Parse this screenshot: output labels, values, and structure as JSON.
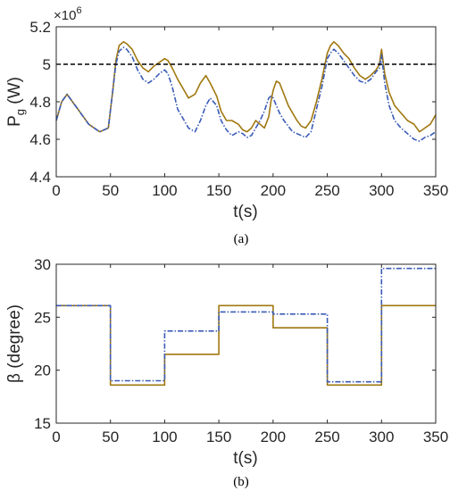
{
  "chart_data": [
    {
      "type": "line",
      "panel_label": "(a)",
      "xlabel": "t(s)",
      "ylabel": "P",
      "ylabel_sub": "g",
      "ylabel_unit": "(W)",
      "y_multiplier": "×10",
      "y_multiplier_exp": "6",
      "xlim": [
        0,
        350
      ],
      "ylim": [
        4.4,
        5.2
      ],
      "xticks": [
        "0",
        "50",
        "100",
        "150",
        "200",
        "250",
        "300",
        "350"
      ],
      "yticks": [
        "4.4",
        "4.6",
        "4.8",
        "5",
        "5.2"
      ],
      "reference_line": {
        "y": 5.0,
        "style": "dashed",
        "color": "#000000"
      },
      "grid": false,
      "legend": "none",
      "series": [
        {
          "color": "#a07810",
          "style": "solid",
          "x": [
            0,
            5,
            10,
            20,
            30,
            40,
            48,
            52,
            55,
            58,
            62,
            65,
            70,
            75,
            80,
            85,
            90,
            95,
            100,
            103,
            107,
            112,
            118,
            122,
            128,
            133,
            138,
            142,
            148,
            152,
            157,
            162,
            168,
            172,
            176,
            180,
            184,
            188,
            192,
            196,
            198,
            200,
            203,
            206,
            210,
            214,
            218,
            222,
            226,
            230,
            235,
            240,
            245,
            250,
            253,
            256,
            260,
            265,
            270,
            275,
            280,
            285,
            290,
            295,
            298,
            300,
            303,
            307,
            312,
            318,
            324,
            330,
            335,
            340,
            345,
            350
          ],
          "y": [
            4.7,
            4.8,
            4.84,
            4.76,
            4.68,
            4.64,
            4.66,
            4.85,
            5.02,
            5.1,
            5.12,
            5.11,
            5.08,
            5.02,
            4.98,
            4.96,
            4.99,
            5.01,
            5.03,
            5.02,
            4.98,
            4.92,
            4.86,
            4.82,
            4.84,
            4.9,
            4.94,
            4.9,
            4.83,
            4.75,
            4.7,
            4.7,
            4.68,
            4.65,
            4.64,
            4.66,
            4.7,
            4.68,
            4.66,
            4.72,
            4.8,
            4.86,
            4.91,
            4.9,
            4.84,
            4.78,
            4.74,
            4.7,
            4.67,
            4.66,
            4.7,
            4.8,
            4.92,
            5.06,
            5.1,
            5.12,
            5.1,
            5.06,
            5.03,
            4.98,
            4.94,
            4.92,
            4.94,
            4.97,
            5.0,
            5.08,
            4.95,
            4.85,
            4.78,
            4.74,
            4.7,
            4.68,
            4.64,
            4.66,
            4.68,
            4.73
          ]
        },
        {
          "color": "#3a5bb8",
          "style": "dashdot",
          "x": [
            0,
            5,
            10,
            20,
            30,
            40,
            48,
            52,
            55,
            58,
            62,
            65,
            70,
            75,
            80,
            85,
            90,
            95,
            100,
            103,
            107,
            112,
            118,
            122,
            128,
            133,
            138,
            142,
            148,
            152,
            157,
            162,
            168,
            172,
            176,
            180,
            184,
            188,
            192,
            196,
            198,
            200,
            203,
            206,
            210,
            214,
            218,
            222,
            226,
            230,
            235,
            240,
            245,
            250,
            253,
            256,
            260,
            265,
            270,
            275,
            280,
            285,
            290,
            295,
            298,
            300,
            303,
            307,
            312,
            318,
            324,
            330,
            335,
            340,
            345,
            350
          ],
          "y": [
            4.7,
            4.8,
            4.84,
            4.76,
            4.68,
            4.64,
            4.66,
            4.85,
            5.0,
            5.07,
            5.09,
            5.08,
            5.04,
            4.97,
            4.92,
            4.9,
            4.92,
            4.95,
            4.97,
            4.95,
            4.88,
            4.76,
            4.7,
            4.66,
            4.64,
            4.7,
            4.78,
            4.82,
            4.78,
            4.7,
            4.65,
            4.62,
            4.64,
            4.63,
            4.61,
            4.62,
            4.66,
            4.7,
            4.75,
            4.82,
            4.83,
            4.82,
            4.78,
            4.74,
            4.7,
            4.67,
            4.64,
            4.63,
            4.62,
            4.61,
            4.64,
            4.76,
            4.88,
            5.03,
            5.06,
            5.08,
            5.06,
            5.02,
            4.98,
            4.94,
            4.91,
            4.9,
            4.92,
            4.96,
            4.98,
            5.05,
            4.9,
            4.78,
            4.7,
            4.66,
            4.63,
            4.6,
            4.59,
            4.61,
            4.62,
            4.64
          ]
        }
      ]
    },
    {
      "type": "line",
      "panel_label": "(b)",
      "xlabel": "t(s)",
      "ylabel": "β (degree)",
      "xlim": [
        0,
        350
      ],
      "ylim": [
        15,
        30
      ],
      "xticks": [
        "0",
        "50",
        "100",
        "150",
        "200",
        "250",
        "300",
        "350"
      ],
      "yticks": [
        "15",
        "20",
        "25",
        "30"
      ],
      "grid": false,
      "legend": "none",
      "series": [
        {
          "color": "#a07810",
          "style": "solid",
          "step": true,
          "x": [
            0,
            50,
            100,
            150,
            200,
            250,
            300,
            350
          ],
          "y": [
            26.1,
            18.6,
            21.5,
            26.1,
            24.0,
            18.6,
            26.1,
            26.1
          ]
        },
        {
          "color": "#3a5bb8",
          "style": "dashdot",
          "step": true,
          "x": [
            0,
            50,
            100,
            150,
            200,
            250,
            300,
            350
          ],
          "y": [
            26.1,
            19.0,
            23.7,
            25.5,
            25.3,
            18.9,
            29.6,
            29.6
          ]
        }
      ]
    }
  ]
}
